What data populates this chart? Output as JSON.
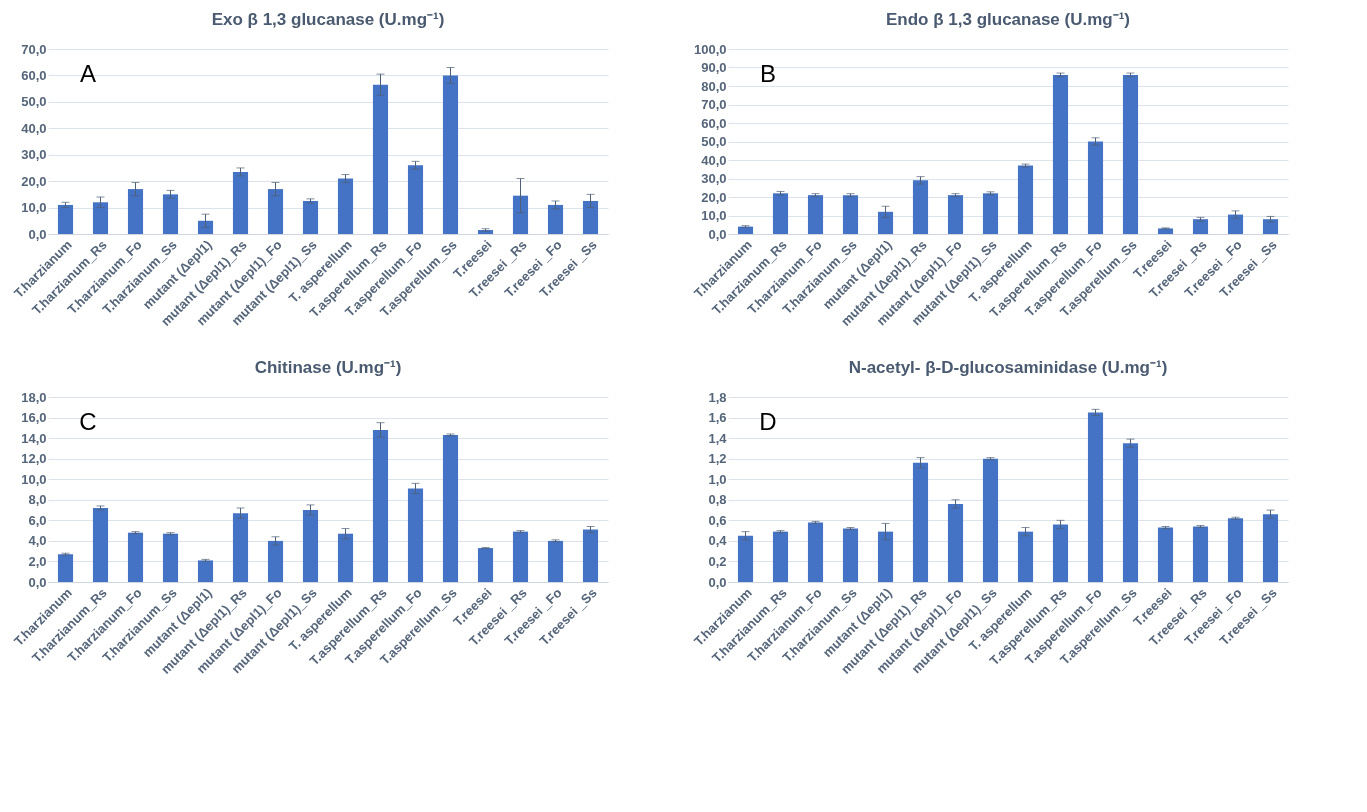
{
  "chart_data": [
    {
      "type": "bar",
      "title": "Exo β 1,3 glucanase (U.mg⁻¹)",
      "categories": [
        "T.harzianum",
        "T.harzianum_Rs",
        "T.harzianum_Fo",
        "T.harzianum_Ss",
        "mutant (Δepl1)",
        "mutant (Δepl1)_Rs",
        "mutant (Δepl1)_Fo",
        "mutant (Δepl1)_Ss",
        "T. asperellum",
        "T.asperellum_Rs",
        "T.asperellum_Fo",
        "T.asperellum_Ss",
        "T.reesei",
        "T.reesei _Rs",
        "T.reesei _Fo",
        "T.reesei _Ss"
      ],
      "values": [
        11,
        12,
        17,
        15,
        5,
        23.5,
        17,
        12.5,
        21,
        56.5,
        26,
        60,
        1.5,
        14.5,
        11,
        12.5
      ],
      "errors": [
        1,
        2,
        2.5,
        1.5,
        2.5,
        1.5,
        2.5,
        0.8,
        1.5,
        4,
        1.5,
        3,
        0.5,
        6.5,
        1.5,
        2.5
      ],
      "color": "#4472c4",
      "ylim": [
        0,
        70
      ],
      "yticks": [
        {
          "value": 0,
          "label": "0,0"
        },
        {
          "value": 10,
          "label": "10,0"
        },
        {
          "value": 20,
          "label": "20,0"
        },
        {
          "value": 30,
          "label": "30,0"
        },
        {
          "value": 40,
          "label": "40,0"
        },
        {
          "value": 50,
          "label": "50,0"
        },
        {
          "value": 60,
          "label": "60,0"
        },
        {
          "value": 70,
          "label": "70,0"
        }
      ],
      "grid": "y",
      "annotations": [
        "A"
      ]
    },
    {
      "type": "bar",
      "title": "Endo β 1,3 glucanase (U.mg⁻¹)",
      "categories": [
        "T.harzianum",
        "T.harzianum_Rs",
        "T.harzianum_Fo",
        "T.harzianum_Ss",
        "mutant (Δepl1)",
        "mutant (Δepl1)_Rs",
        "mutant (Δepl1)_Fo",
        "mutant (Δepl1)_Ss",
        "T. asperellum",
        "T.asperellum_Rs",
        "T.asperellum_Fo",
        "T.asperellum_Ss",
        "T.reesei",
        "T.reesei _Rs",
        "T.reesei _Fo",
        "T.reesei _Ss"
      ],
      "values": [
        4,
        22,
        21,
        21,
        12,
        29,
        21,
        22,
        37,
        86,
        50,
        86,
        3,
        8,
        10.5,
        8
      ],
      "errors": [
        0.5,
        1,
        0.8,
        0.8,
        3,
        2,
        0.8,
        0.8,
        0.8,
        1,
        2,
        1,
        0.3,
        1,
        2,
        1.5
      ],
      "color": "#4472c4",
      "ylim": [
        0,
        100
      ],
      "yticks": [
        {
          "value": 0,
          "label": "0,0"
        },
        {
          "value": 10,
          "label": "10,0"
        },
        {
          "value": 20,
          "label": "20,0"
        },
        {
          "value": 30,
          "label": "30,0"
        },
        {
          "value": 40,
          "label": "40,0"
        },
        {
          "value": 50,
          "label": "50,0"
        },
        {
          "value": 60,
          "label": "60,0"
        },
        {
          "value": 70,
          "label": "70,0"
        },
        {
          "value": 80,
          "label": "80,0"
        },
        {
          "value": 90,
          "label": "90,0"
        },
        {
          "value": 100,
          "label": "100,0"
        }
      ],
      "grid": "y",
      "annotations": [
        "B"
      ]
    },
    {
      "type": "bar",
      "title": "Chitinase (U.mg⁻¹)",
      "categories": [
        "T.harzianum",
        "T.harzianum_Rs",
        "T.harzianum_Fo",
        "T.harzianum_Ss",
        "mutant (Δepl1)",
        "mutant (Δepl1)_Rs",
        "mutant (Δepl1)_Fo",
        "mutant (Δepl1)_Ss",
        "T. asperellum",
        "T.asperellum_Rs",
        "T.asperellum_Fo",
        "T.asperellum_Ss",
        "T.reesei",
        "T.reesei _Rs",
        "T.reesei _Fo",
        "T.reesei _Ss"
      ],
      "values": [
        2.7,
        7.2,
        4.8,
        4.7,
        2.1,
        6.7,
        4.0,
        7.0,
        4.7,
        14.8,
        9.1,
        14.3,
        3.3,
        4.9,
        4.0,
        5.1
      ],
      "errors": [
        0.1,
        0.2,
        0.1,
        0.1,
        0.1,
        0.5,
        0.4,
        0.5,
        0.5,
        0.7,
        0.5,
        0.1,
        0.05,
        0.1,
        0.1,
        0.3
      ],
      "color": "#4472c4",
      "ylim": [
        0,
        18
      ],
      "yticks": [
        {
          "value": 0,
          "label": "0,0"
        },
        {
          "value": 2,
          "label": "2,0"
        },
        {
          "value": 4,
          "label": "4,0"
        },
        {
          "value": 6,
          "label": "6,0"
        },
        {
          "value": 8,
          "label": "8,0"
        },
        {
          "value": 10,
          "label": "10,0"
        },
        {
          "value": 12,
          "label": "12,0"
        },
        {
          "value": 14,
          "label": "14,0"
        },
        {
          "value": 16,
          "label": "16,0"
        },
        {
          "value": 18,
          "label": "18,0"
        }
      ],
      "grid": "y",
      "annotations": [
        "C"
      ]
    },
    {
      "type": "bar",
      "title": "N-acetyl- β-D-glucosaminidase (U.mg⁻¹)",
      "categories": [
        "T.harzianum",
        "T.harzianum_Rs",
        "T.harzianum_Fo",
        "T.harzianum_Ss",
        "mutant (Δepl1)",
        "mutant (Δepl1)_Rs",
        "mutant (Δepl1)_Fo",
        "mutant (Δepl1)_Ss",
        "T. asperellum",
        "T.asperellum_Rs",
        "T.asperellum_Fo",
        "T.asperellum_Ss",
        "T.reesei",
        "T.reesei _Rs",
        "T.reesei _Fo",
        "T.reesei _Ss"
      ],
      "values": [
        0.45,
        0.49,
        0.58,
        0.52,
        0.49,
        1.16,
        0.76,
        1.2,
        0.49,
        0.56,
        1.65,
        1.35,
        0.53,
        0.54,
        0.62,
        0.66
      ],
      "errors": [
        0.04,
        0.01,
        0.01,
        0.01,
        0.08,
        0.05,
        0.04,
        0.01,
        0.04,
        0.04,
        0.03,
        0.04,
        0.01,
        0.01,
        0.01,
        0.04
      ],
      "color": "#4472c4",
      "ylim": [
        0,
        1.8
      ],
      "yticks": [
        {
          "value": 0,
          "label": "0,0"
        },
        {
          "value": 0.2,
          "label": "0,2"
        },
        {
          "value": 0.4,
          "label": "0,4"
        },
        {
          "value": 0.6,
          "label": "0,6"
        },
        {
          "value": 0.8,
          "label": "0,8"
        },
        {
          "value": 1,
          "label": "1,0"
        },
        {
          "value": 1.2,
          "label": "1,2"
        },
        {
          "value": 1.4,
          "label": "1,4"
        },
        {
          "value": 1.6,
          "label": "1,6"
        },
        {
          "value": 1.8,
          "label": "1,8"
        }
      ],
      "grid": "y",
      "annotations": [
        "D"
      ]
    }
  ]
}
